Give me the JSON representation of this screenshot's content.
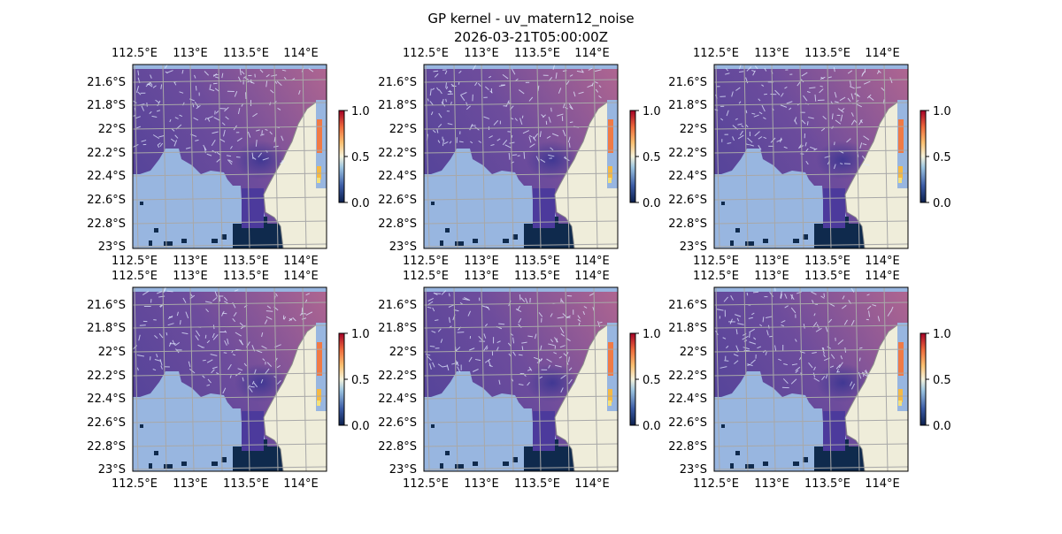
{
  "chart_data": {
    "type": "heatmap",
    "title": "GP kernel - uv_matern12_noise",
    "subtitle": "2026-03-21T05:00:00Z",
    "layout": "2 rows x 3 columns map panels",
    "map": {
      "lon_ticks": [
        "112.5°E",
        "113°E",
        "113.5°E",
        "114°E"
      ],
      "lat_ticks": [
        "21.6°S",
        "21.8°S",
        "22°S",
        "22.2°S",
        "22.4°S",
        "22.6°S",
        "22.8°S",
        "23°S"
      ],
      "gridlines": true,
      "land_color": "#efedda",
      "masked_ocean_color": "#98b6e0",
      "overlay": "wind/current vectors (white arrows)"
    },
    "colorbar": {
      "ticks": [
        "0.0",
        "0.5",
        "1.0"
      ],
      "range": [
        0,
        1
      ],
      "colormap": [
        "#0b1f4d",
        "#3b5ba5",
        "#9cc4e0",
        "#f5f3dc",
        "#fbc071",
        "#ee6a3c",
        "#a50026"
      ]
    },
    "panels": [
      {
        "row": 1,
        "col": 1
      },
      {
        "row": 1,
        "col": 2
      },
      {
        "row": 1,
        "col": 3
      },
      {
        "row": 2,
        "col": 1
      },
      {
        "row": 2,
        "col": 2
      },
      {
        "row": 2,
        "col": 3
      }
    ]
  }
}
